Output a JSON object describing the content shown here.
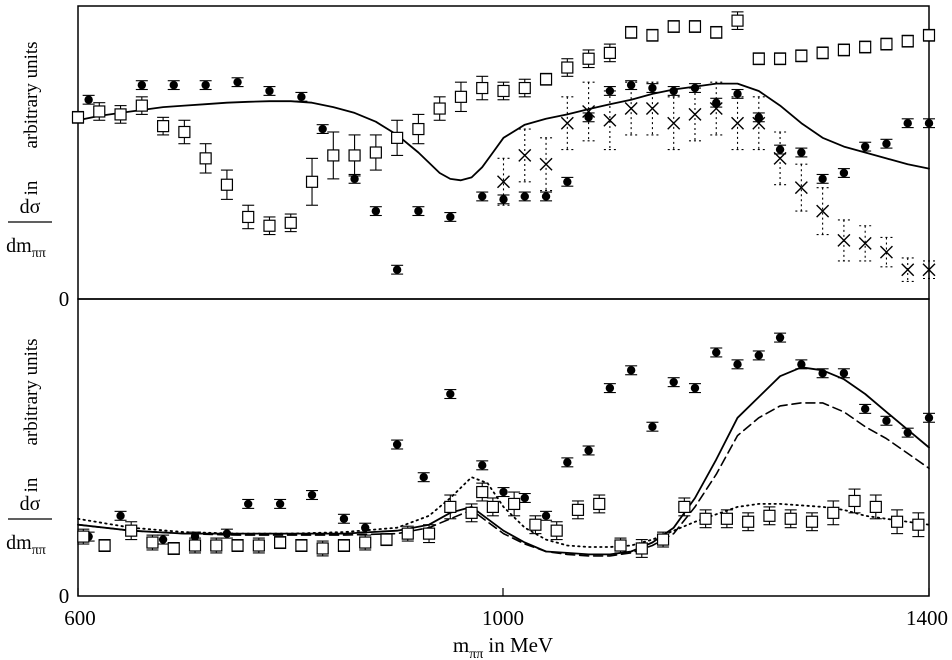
{
  "chart_data": [
    {
      "type": "scatter",
      "panel": "top",
      "xlim": [
        600,
        1400
      ],
      "ylim": [
        0,
        100
      ],
      "ytick_labels": [
        "0"
      ],
      "ylabel": {
        "numerator": "dσ",
        "denominator": "dm",
        "subscript": "ππ",
        "in_word": "in",
        "units": "arbitrary units"
      },
      "series": [
        {
          "name": "solid curve",
          "style": "solid-line",
          "x": [
            600,
            620,
            640,
            660,
            680,
            700,
            720,
            740,
            760,
            780,
            800,
            820,
            840,
            860,
            880,
            900,
            920,
            940,
            950,
            960,
            970,
            980,
            990,
            1000,
            1020,
            1040,
            1060,
            1080,
            1100,
            1120,
            1140,
            1160,
            1180,
            1200,
            1220,
            1240,
            1260,
            1280,
            1300,
            1320,
            1340,
            1360,
            1380,
            1400
          ],
          "y": [
            61,
            62.5,
            63.5,
            64.5,
            65.5,
            66,
            66.5,
            67,
            67.3,
            67.5,
            67.5,
            67,
            65.5,
            63.5,
            60.5,
            56,
            50,
            43,
            41,
            40.5,
            41.5,
            45,
            50,
            55,
            59.5,
            61.5,
            63,
            64.8,
            66.5,
            68,
            70,
            71.5,
            72.5,
            73.5,
            73.5,
            71,
            66,
            60,
            55,
            52,
            50,
            48,
            46,
            44.5
          ]
        },
        {
          "name": "filled circles",
          "style": "filled-circle-errorbar",
          "x": [
            610,
            660,
            690,
            720,
            750,
            780,
            810,
            830,
            860,
            880,
            900,
            920,
            950,
            980,
            1000,
            1020,
            1040,
            1060,
            1080,
            1100,
            1120,
            1140,
            1160,
            1180,
            1200,
            1220,
            1240,
            1260,
            1280,
            1300,
            1320,
            1340,
            1360,
            1380,
            1400
          ],
          "y": [
            68,
            73,
            73,
            73,
            74,
            71,
            69,
            58,
            41,
            30,
            10,
            30,
            28,
            35,
            34,
            35,
            35,
            40,
            62,
            71,
            73,
            72,
            71,
            72,
            67,
            70,
            62,
            51,
            50,
            41,
            43,
            52,
            53,
            60,
            60
          ],
          "err": [
            1.5,
            1.5,
            1.5,
            1.5,
            1.5,
            1.5,
            1.5,
            1.5,
            1.5,
            1.5,
            1.5,
            1.5,
            1.5,
            1.5,
            1.5,
            1.5,
            1.5,
            1.5,
            1.5,
            1.5,
            1.5,
            1.5,
            1.5,
            1.5,
            1.5,
            1.5,
            1.5,
            1.5,
            1.5,
            1.5,
            1.5,
            1.5,
            1.5,
            1.5,
            1.5
          ]
        },
        {
          "name": "open squares",
          "style": "open-square-errorbar",
          "x": [
            600,
            620,
            640,
            660,
            680,
            700,
            720,
            740,
            760,
            780,
            800,
            820,
            840,
            860,
            880,
            900,
            920,
            940,
            960,
            980,
            1000,
            1020,
            1040,
            1060,
            1080,
            1100,
            1120,
            1140,
            1160,
            1180,
            1200,
            1220,
            1240,
            1260,
            1280,
            1300,
            1320,
            1340,
            1360,
            1380,
            1400
          ],
          "y": [
            62,
            64,
            63,
            66,
            59,
            57,
            48,
            39,
            28,
            25,
            26,
            40,
            49,
            49,
            50,
            55,
            58,
            65,
            69,
            72,
            71,
            72,
            75,
            79,
            82,
            84,
            91,
            90,
            93,
            93,
            91,
            95,
            82,
            82,
            83,
            84,
            85,
            86,
            87,
            88,
            90
          ],
          "err": [
            2,
            3,
            3,
            3,
            3,
            4,
            5,
            5,
            4,
            3,
            3,
            8,
            8,
            7,
            6,
            6,
            5,
            4,
            5,
            4,
            3,
            3,
            2,
            3,
            3,
            3,
            2,
            2,
            2,
            2,
            2,
            3,
            2,
            2,
            2,
            2,
            2,
            2,
            2,
            2,
            2
          ]
        },
        {
          "name": "crosses",
          "style": "cross-dotted-errorbar",
          "x": [
            1000,
            1020,
            1040,
            1060,
            1080,
            1100,
            1120,
            1140,
            1160,
            1180,
            1200,
            1220,
            1240,
            1260,
            1280,
            1300,
            1320,
            1340,
            1360,
            1380,
            1400
          ],
          "y": [
            40,
            49,
            46,
            60,
            64,
            61,
            65,
            65,
            60,
            63,
            65,
            60,
            60,
            48,
            38,
            30,
            20,
            19,
            16,
            10,
            10
          ],
          "err": [
            8,
            9,
            9,
            9,
            10,
            10,
            9,
            9,
            9,
            9,
            9,
            9,
            9,
            9,
            8,
            8,
            7,
            6,
            5,
            4,
            3
          ]
        }
      ]
    },
    {
      "type": "scatter",
      "panel": "bottom",
      "xlim": [
        600,
        1400
      ],
      "ylim": [
        0,
        100
      ],
      "xtick_labels": [
        "600",
        "1000",
        "1400"
      ],
      "ytick_labels": [
        "0"
      ],
      "xlabel": {
        "main": "m",
        "subscript": "ππ",
        "suffix": "in MeV"
      },
      "ylabel": {
        "numerator": "dσ",
        "denominator": "dm",
        "subscript": "ππ",
        "in_word": "in",
        "units": "arbitrary units"
      },
      "series": [
        {
          "name": "solid curve",
          "style": "solid-line",
          "x": [
            600,
            650,
            700,
            750,
            800,
            850,
            900,
            930,
            950,
            970,
            985,
            1000,
            1020,
            1040,
            1060,
            1080,
            1100,
            1120,
            1140,
            1160,
            1180,
            1200,
            1220,
            1240,
            1260,
            1280,
            1300,
            1320,
            1340,
            1360,
            1380,
            1400
          ],
          "y": [
            24,
            22,
            21,
            21,
            21,
            21,
            22,
            24,
            28,
            30,
            26,
            22,
            18,
            15,
            14.5,
            14,
            14,
            15,
            18,
            23,
            33,
            46,
            60,
            67,
            74,
            77,
            76,
            73,
            68,
            62,
            56,
            50
          ]
        },
        {
          "name": "dashed curve",
          "style": "dashed-line",
          "x": [
            600,
            650,
            700,
            750,
            800,
            850,
            900,
            930,
            950,
            970,
            985,
            1000,
            1020,
            1040,
            1060,
            1080,
            1100,
            1120,
            1140,
            1160,
            1180,
            1200,
            1220,
            1240,
            1260,
            1280,
            1300,
            1320,
            1340,
            1360,
            1380,
            1400
          ],
          "y": [
            24,
            22,
            21,
            20.5,
            20.5,
            20.5,
            21,
            23,
            26,
            29,
            25,
            21,
            17.5,
            15,
            14,
            13.5,
            13.5,
            14.5,
            17,
            21,
            30,
            41,
            54,
            60,
            64,
            65,
            65,
            62,
            57,
            53,
            48,
            43
          ]
        },
        {
          "name": "dotted curve",
          "style": "dotted-line",
          "x": [
            600,
            650,
            700,
            750,
            800,
            850,
            900,
            930,
            950,
            970,
            985,
            1000,
            1020,
            1040,
            1060,
            1080,
            1100,
            1120,
            1140,
            1160,
            1180,
            1200,
            1220,
            1240,
            1260,
            1280,
            1300,
            1320,
            1340,
            1360,
            1380,
            1400
          ],
          "y": [
            26,
            23,
            21.5,
            21,
            21,
            21.5,
            23,
            27,
            33,
            40,
            38,
            30,
            23,
            19,
            17,
            16.5,
            16.5,
            17,
            19,
            22,
            25,
            27.5,
            30,
            31,
            31,
            30.5,
            30,
            29,
            27,
            26,
            25,
            24
          ]
        },
        {
          "name": "filled circles",
          "style": "filled-circle-errorbar",
          "x": [
            610,
            640,
            680,
            710,
            740,
            760,
            790,
            820,
            850,
            870,
            900,
            925,
            950,
            980,
            1000,
            1020,
            1040,
            1060,
            1080,
            1100,
            1120,
            1140,
            1160,
            1180,
            1200,
            1220,
            1240,
            1260,
            1280,
            1300,
            1320,
            1340,
            1360,
            1380,
            1400
          ],
          "y": [
            20,
            27,
            19,
            20,
            21,
            31,
            31,
            34,
            26,
            23,
            51,
            40,
            68,
            44,
            35,
            33,
            27,
            45,
            49,
            70,
            76,
            57,
            72,
            70,
            82,
            78,
            81,
            87,
            78,
            75,
            75,
            63,
            59,
            55,
            60
          ],
          "err": [
            1.5,
            1.5,
            1.5,
            1.5,
            1.5,
            1.5,
            1.5,
            1.5,
            1.5,
            1.5,
            1.5,
            1.5,
            1.5,
            1.5,
            1.5,
            1.5,
            1.5,
            1.5,
            1.5,
            1.5,
            1.5,
            1.5,
            1.5,
            1.5,
            1.5,
            1.5,
            1.5,
            1.5,
            1.5,
            1.5,
            1.5,
            1.5,
            1.5,
            1.5,
            1.5
          ]
        },
        {
          "name": "open squares",
          "style": "open-square-errorbar",
          "x": [
            605,
            625,
            650,
            670,
            690,
            710,
            730,
            750,
            770,
            790,
            810,
            830,
            850,
            870,
            890,
            910,
            930,
            950,
            970,
            980,
            990,
            1010,
            1030,
            1050,
            1070,
            1090,
            1110,
            1130,
            1150,
            1170,
            1190,
            1210,
            1230,
            1250,
            1270,
            1290,
            1310,
            1330,
            1350,
            1370,
            1390
          ],
          "y": [
            20,
            17,
            22,
            18,
            16,
            17,
            17,
            17,
            17,
            18,
            17,
            16,
            17,
            18,
            19,
            21,
            21,
            30,
            28,
            35,
            30,
            31,
            24,
            22,
            29,
            31,
            17,
            16,
            19,
            30,
            26,
            26,
            25,
            27,
            26,
            25,
            28,
            32,
            30,
            25,
            24
          ],
          "err": [
            2.5,
            2,
            3,
            2.5,
            2,
            2.5,
            2.5,
            2,
            2.5,
            2,
            2,
            2.5,
            2,
            2.5,
            2,
            2.5,
            3,
            4,
            3,
            3,
            3,
            4,
            3,
            3,
            3,
            3,
            2.5,
            3,
            2.5,
            3,
            3,
            3,
            3,
            3,
            3,
            3,
            4,
            4,
            4,
            4,
            4
          ]
        }
      ]
    }
  ]
}
